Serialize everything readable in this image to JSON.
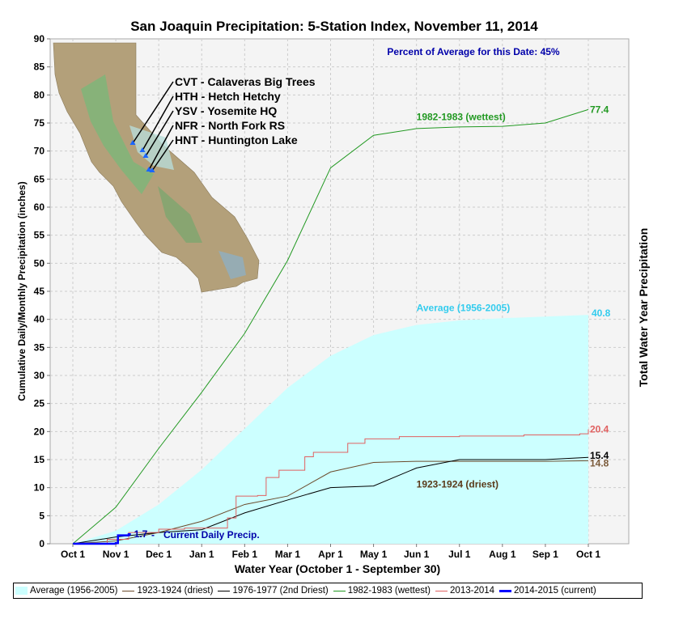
{
  "chart_data": {
    "type": "line",
    "title": "San Joaquin Precipitation: 5-Station Index, November 11, 2014",
    "subtitle": "Percent of Average for this Date: 45%",
    "xlabel": "Water Year (October 1 - September 30)",
    "ylabel": "Cumulative Daily/Monthly Precipitation (inches)",
    "ylabel_right": "Total Water Year Precipitation",
    "ylim": [
      0,
      90
    ],
    "yticks": [
      "0",
      "5",
      "10",
      "15",
      "20",
      "25",
      "30",
      "35",
      "40",
      "45",
      "50",
      "55",
      "60",
      "65",
      "70",
      "75",
      "80",
      "85",
      "90"
    ],
    "categories": [
      "Oct 1",
      "Nov 1",
      "Dec 1",
      "Jan 1",
      "Feb 1",
      "Mar 1",
      "Apr 1",
      "May 1",
      "Jun 1",
      "Jul 1",
      "Aug 1",
      "Sep 1",
      "Oct 1"
    ],
    "grid": true,
    "legend_position": "bottom",
    "series": [
      {
        "name": "Average (1956-2005)",
        "kind": "area",
        "color": "#ccffff",
        "values": [
          0,
          2.3,
          7.0,
          13.2,
          20.5,
          27.8,
          33.5,
          37.2,
          39.0,
          39.8,
          40.2,
          40.5,
          40.8
        ],
        "end_label": "40.8",
        "end_label_color": "#33ccee",
        "label": "Average (1956-2005)",
        "label_color": "#33ccee",
        "label_at": [
          8.0,
          41.5
        ]
      },
      {
        "name": "1923-1924 (driest)",
        "kind": "line",
        "color": "#6b4a2b",
        "values": [
          0,
          0.5,
          2.0,
          4.0,
          7.0,
          8.5,
          12.8,
          14.5,
          14.7,
          14.7,
          14.7,
          14.7,
          14.8
        ],
        "end_label": "14.8",
        "end_label_color": "#7a5a3a",
        "label": "1923-1924 (driest)",
        "label_color": "#5a3a1a",
        "label_at": [
          8.0,
          10.0
        ]
      },
      {
        "name": "1976-1977 (2nd Driest)",
        "kind": "line",
        "color": "#000000",
        "values": [
          0,
          1.2,
          2.0,
          2.5,
          5.5,
          7.8,
          10.0,
          10.3,
          13.5,
          15.0,
          15.0,
          15.0,
          15.4
        ],
        "end_label": "15.4",
        "end_label_color": "#000000"
      },
      {
        "name": "1982-1983 (wettest)",
        "kind": "line",
        "color": "#229922",
        "values": [
          0,
          6.5,
          17.0,
          27.0,
          37.5,
          50.5,
          67.0,
          72.8,
          74.0,
          74.3,
          74.4,
          75.0,
          77.4
        ],
        "end_label": "77.4",
        "end_label_color": "#229922",
        "label": "1982-1983 (wettest)",
        "label_color": "#229922",
        "label_at": [
          8.0,
          75.5
        ]
      },
      {
        "name": "2013-2014",
        "kind": "step",
        "color": "#e06060",
        "points": [
          [
            0,
            0
          ],
          [
            0.8,
            0.8
          ],
          [
            1.3,
            2.0
          ],
          [
            2.0,
            2.6
          ],
          [
            2.6,
            2.8
          ],
          [
            3.6,
            4.6
          ],
          [
            3.8,
            8.5
          ],
          [
            4.3,
            8.6
          ],
          [
            4.5,
            11.8
          ],
          [
            4.8,
            13.1
          ],
          [
            5.4,
            15.5
          ],
          [
            5.6,
            16.3
          ],
          [
            6.4,
            17.9
          ],
          [
            6.8,
            18.7
          ],
          [
            7.6,
            19.1
          ],
          [
            9.0,
            19.2
          ],
          [
            10.5,
            19.4
          ],
          [
            11.8,
            19.6
          ],
          [
            12.0,
            20.4
          ]
        ],
        "end_label": "20.4",
        "end_label_color": "#e06060"
      },
      {
        "name": "2014-2015 (current)",
        "kind": "step",
        "color": "#0000ff",
        "points": [
          [
            0,
            0
          ],
          [
            1.0,
            0.1
          ],
          [
            1.05,
            1.5
          ],
          [
            1.3,
            1.7
          ],
          [
            1.35,
            1.7
          ]
        ],
        "end_label": "1.7",
        "end_label_color": "#0000aa",
        "label": "Current Daily Precip.",
        "label_color": "#0000aa"
      }
    ],
    "stations": [
      "CVT - Calaveras Big Trees",
      "HTH - Hetch Hetchy",
      "YSV - Yosemite HQ",
      "NFR - North Fork RS",
      "HNT - Huntington Lake"
    ]
  },
  "legend": {
    "items": [
      {
        "label": "Average (1956-2005)",
        "color": "#ccffff",
        "kind": "area"
      },
      {
        "label": "1923-1924 (driest)",
        "color": "#6b4a2b",
        "kind": "line"
      },
      {
        "label": "1976-1977 (2nd Driest)",
        "color": "#000000",
        "kind": "line"
      },
      {
        "label": "1982-1983 (wettest)",
        "color": "#229922",
        "kind": "line"
      },
      {
        "label": "2013-2014",
        "color": "#e06060",
        "kind": "line"
      },
      {
        "label": "2014-2015 (current)",
        "color": "#0000ff",
        "kind": "thick"
      }
    ]
  }
}
